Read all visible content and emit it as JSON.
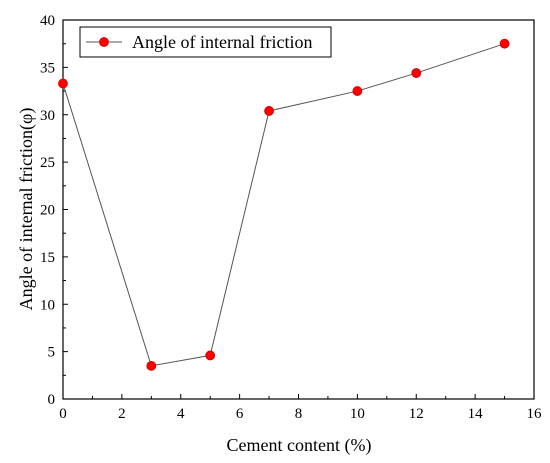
{
  "chart_data": {
    "type": "line",
    "xlabel": "Cement content (%)",
    "ylabel": "Angle of internal friction(φ)",
    "xlim": [
      0,
      16
    ],
    "ylim": [
      0,
      40
    ],
    "xticks": [
      0,
      2,
      4,
      6,
      8,
      10,
      12,
      14,
      16
    ],
    "yticks": [
      0,
      5,
      10,
      15,
      20,
      25,
      30,
      35,
      40
    ],
    "xtick_labels": [
      "0",
      "2",
      "4",
      "6",
      "8",
      "10",
      "12",
      "14",
      "16"
    ],
    "ytick_labels": [
      "0",
      "5",
      "10",
      "15",
      "20",
      "25",
      "30",
      "35",
      "40"
    ],
    "series": [
      {
        "name": "Angle of internal friction",
        "x": [
          0,
          3,
          5,
          7,
          10,
          12,
          15
        ],
        "y": [
          33.3,
          3.5,
          4.6,
          30.4,
          32.5,
          34.4,
          37.5
        ],
        "color": "#ff0000",
        "line_color": "#555555"
      }
    ],
    "legend_position": "top-left",
    "grid": false
  }
}
